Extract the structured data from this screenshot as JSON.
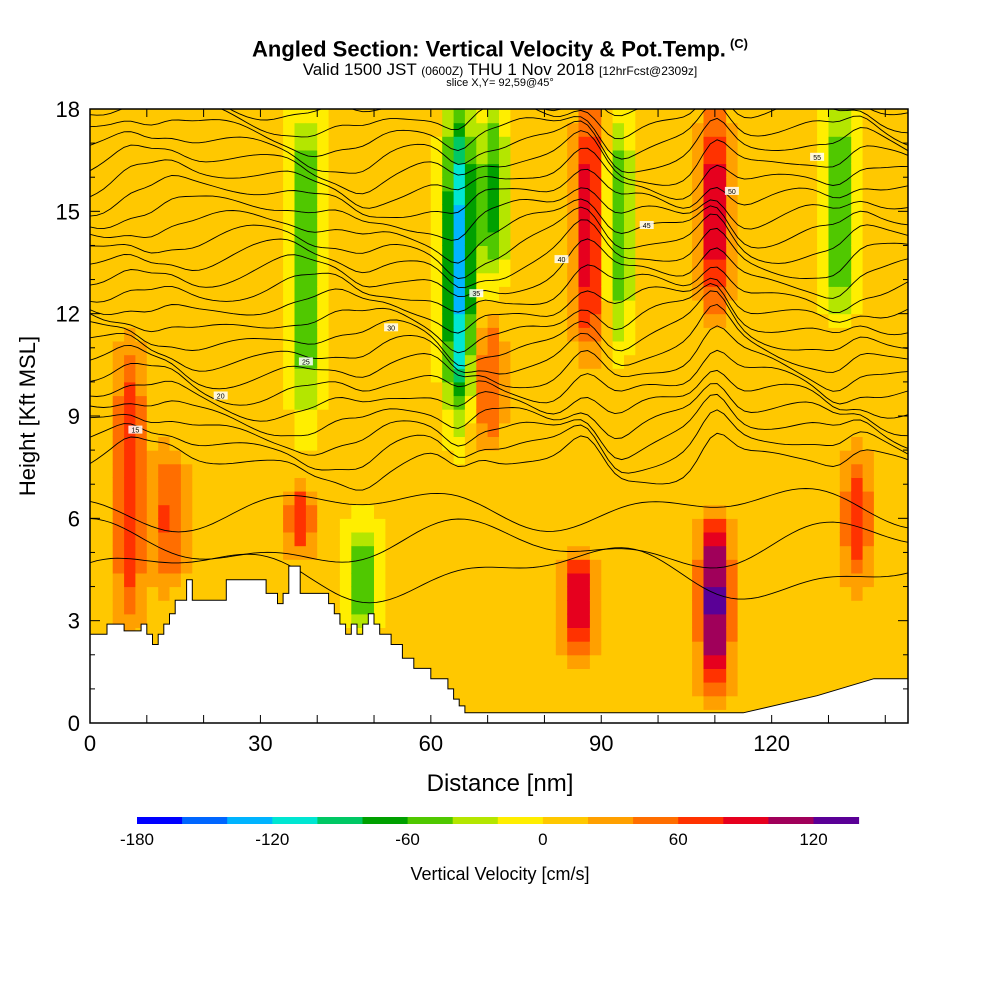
{
  "header": {
    "title": "Angled Section: Vertical Velocity & Pot.Temp.",
    "title_unit": "(C)",
    "valid_prefix": "Valid 1500 JST",
    "valid_zulu": "(0600Z)",
    "valid_date": "THU 1 Nov 2018",
    "forecast": "[12hrFcst@2309z]",
    "slice": "slice X,Y= 92,59@45°"
  },
  "chart_data": {
    "type": "heatmap",
    "xlabel": "Distance [nm]",
    "ylabel": "Height [Kft MSL]",
    "xlim": [
      0,
      144
    ],
    "ylim": [
      0,
      18
    ],
    "x_ticks": [
      0,
      30,
      60,
      90,
      120
    ],
    "y_ticks": [
      0,
      3,
      6,
      9,
      12,
      15,
      18
    ],
    "colorbar": {
      "label": "Vertical Velocity [cm/s]",
      "min": -180,
      "max": 140,
      "step": 20,
      "tick_values": [
        -180,
        -120,
        -60,
        0,
        60,
        120
      ],
      "colors": [
        "#0000ff",
        "#0066ff",
        "#00b4ff",
        "#00e6d2",
        "#00c864",
        "#00a000",
        "#50c800",
        "#b4e600",
        "#ffee00",
        "#ffc800",
        "#ffa000",
        "#ff6e00",
        "#ff3200",
        "#e6001e",
        "#a0005a",
        "#5a0096"
      ]
    },
    "velocity_features": [
      {
        "x": 7,
        "z_range": [
          3,
          11
        ],
        "peak": 70
      },
      {
        "x": 14,
        "z_range": [
          4,
          8
        ],
        "peak": 60
      },
      {
        "x": 37,
        "z_range": [
          5,
          7
        ],
        "peak": 60
      },
      {
        "x": 38,
        "z_range": [
          9,
          18
        ],
        "peak": -70
      },
      {
        "x": 48,
        "z_range": [
          2.5,
          6
        ],
        "peak": -60
      },
      {
        "x": 65,
        "z_range": [
          9,
          18
        ],
        "peak": -130
      },
      {
        "x": 71,
        "z_range": [
          13,
          18
        ],
        "peak": -70
      },
      {
        "x": 70,
        "z_range": [
          8,
          12
        ],
        "peak": 50
      },
      {
        "x": 86,
        "z_range": [
          2,
          5
        ],
        "peak": 90
      },
      {
        "x": 88,
        "z_range": [
          11,
          18
        ],
        "peak": 90
      },
      {
        "x": 93,
        "z_range": [
          11,
          18
        ],
        "peak": -60
      },
      {
        "x": 110,
        "z_range": [
          1,
          6
        ],
        "peak": 130
      },
      {
        "x": 110,
        "z_range": [
          12,
          18
        ],
        "peak": 90
      },
      {
        "x": 132,
        "z_range": [
          12,
          18
        ],
        "peak": -70
      },
      {
        "x": 135,
        "z_range": [
          4,
          8
        ],
        "peak": 60
      }
    ],
    "theta_contours_note": "Potential temperature isolines, labeled in °C",
    "theta_labels": [
      "15",
      "20",
      "25",
      "30",
      "35",
      "40",
      "45",
      "50",
      "55"
    ]
  }
}
